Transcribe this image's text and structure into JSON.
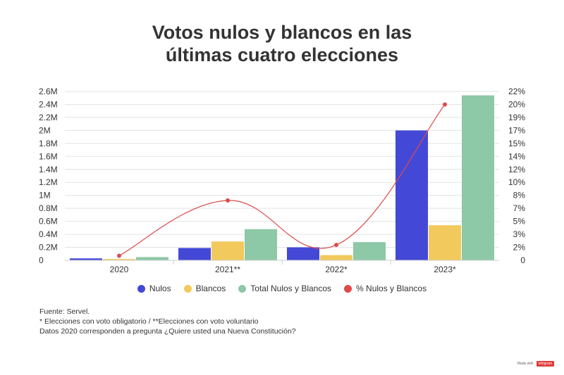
{
  "title": {
    "line1": "Votos nulos y blancos en las",
    "line2": "últimas cuatro elecciones"
  },
  "chart_data": {
    "type": "bar",
    "categories": [
      "2020",
      "2021**",
      "2022*",
      "2023*"
    ],
    "series": [
      {
        "name": "Nulos",
        "type": "bar",
        "color": "#4448d6",
        "values": [
          30000,
          190000,
          200000,
          2000000
        ]
      },
      {
        "name": "Blancos",
        "type": "bar",
        "color": "#f2c95c",
        "values": [
          20000,
          290000,
          80000,
          540000
        ]
      },
      {
        "name": "Total Nulos y Blancos",
        "type": "bar",
        "color": "#8dc8a7",
        "values": [
          50000,
          480000,
          280000,
          2540000
        ]
      },
      {
        "name": "% Nulos y Blancos",
        "type": "line",
        "axis": "right",
        "color": "#dd4b4b",
        "values": [
          0.6,
          7.8,
          2.0,
          20.3
        ]
      }
    ],
    "y_left": {
      "ticks": [
        "0",
        "0.2M",
        "0.4M",
        "0.6M",
        "0.8M",
        "1M",
        "1.2M",
        "1.4M",
        "1.6M",
        "1.8M",
        "2M",
        "2.2M",
        "2.4M",
        "2.6M"
      ],
      "ylim": [
        0,
        2600000
      ]
    },
    "y_right": {
      "ticks": [
        "0",
        "2%",
        "3%",
        "5%",
        "7%",
        "8%",
        "10%",
        "12%",
        "14%",
        "15%",
        "17%",
        "19%",
        "20%",
        "22%"
      ],
      "ylim": [
        0,
        22
      ]
    },
    "grid": true,
    "legend_placement": "bottom"
  },
  "notes": {
    "source": "Fuente: Servel.",
    "footnote1": "* Elecciones con voto obligatorio / **Elecciones con voto voluntario",
    "footnote2": "Datos 2020 corresponden a pregunta ¿Quiere usted una Nueva Constitución?"
  },
  "credit": {
    "text": "Made with",
    "brand": "infogram"
  }
}
